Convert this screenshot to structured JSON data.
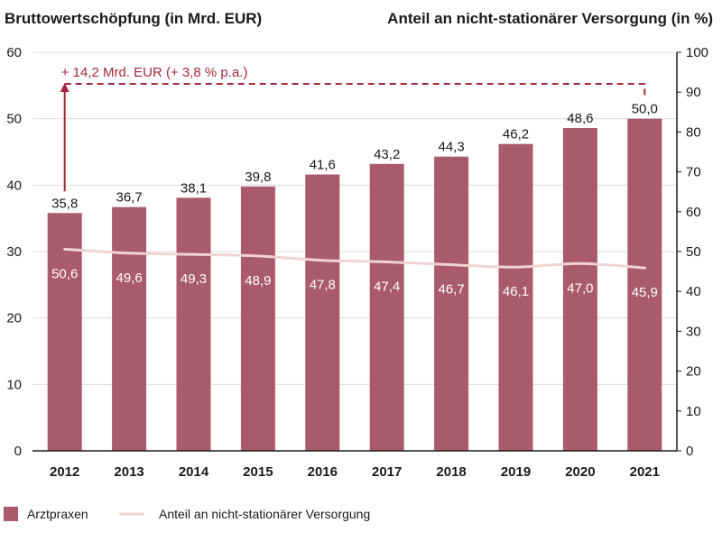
{
  "chart_data": {
    "type": "bar",
    "left_axis_title": "Bruttowertschöpfung (in Mrd. EUR)",
    "right_axis_title": "Anteil an nicht-stationärer Versorgung (in %)",
    "categories": [
      "2012",
      "2013",
      "2014",
      "2015",
      "2016",
      "2017",
      "2018",
      "2019",
      "2020",
      "2021"
    ],
    "series": [
      {
        "name": "Arztpraxen",
        "type": "bar",
        "axis": "left",
        "values": [
          35.8,
          36.7,
          38.1,
          39.8,
          41.6,
          43.2,
          44.3,
          46.2,
          48.6,
          50.0
        ],
        "labels": [
          "35,8",
          "36,7",
          "38,1",
          "39,8",
          "41,6",
          "43,2",
          "44,3",
          "46,2",
          "48,6",
          "50,0"
        ]
      },
      {
        "name": "Anteil an nicht-stationärer Versorgung",
        "type": "line",
        "axis": "right",
        "values": [
          50.6,
          49.6,
          49.3,
          48.9,
          47.8,
          47.4,
          46.7,
          46.1,
          47.0,
          45.9
        ],
        "labels": [
          "50,6",
          "49,6",
          "49,3",
          "48,9",
          "47,8",
          "47,4",
          "46,7",
          "46,1",
          "47,0",
          "45,9"
        ]
      }
    ],
    "y_left": {
      "min": 0,
      "max": 60,
      "ticks": [
        0,
        10,
        20,
        30,
        40,
        50,
        60
      ]
    },
    "y_right": {
      "min": 0,
      "max": 100,
      "ticks": [
        0,
        10,
        20,
        30,
        40,
        50,
        60,
        70,
        80,
        90,
        100
      ]
    },
    "annotation": "+ 14,2 Mrd. EUR (+ 3,8 % p.a.)",
    "grid": "horizontal",
    "legend_position": "bottom-left",
    "colors": {
      "bar": "#a95b6b",
      "line": "#f0d3d3",
      "annotation": "#a3283d",
      "grid": "#dcdcdc",
      "axis": "#1a1a1a"
    }
  }
}
